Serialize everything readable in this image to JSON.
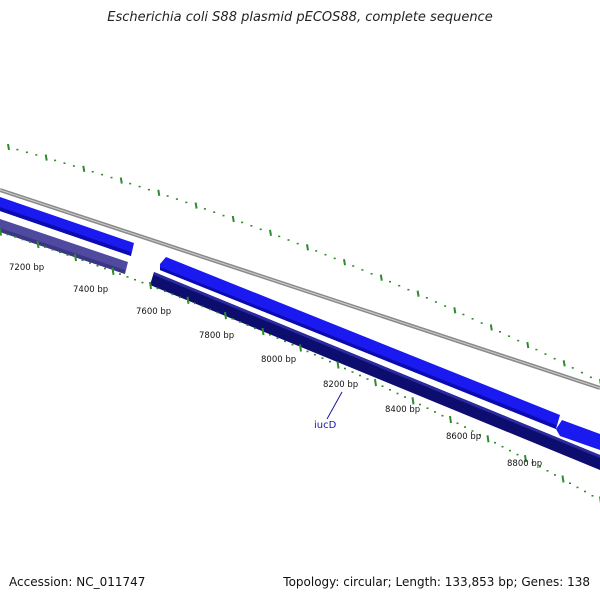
{
  "title": "Escherichia coli S88 plasmid pECOS88, complete sequence",
  "footer": {
    "accession": "Accession: NC_011747",
    "summary": "Topology: circular; Length: 133,853 bp; Genes: 138"
  },
  "scale": {
    "tick_labels": [
      "7200 bp",
      "7400 bp",
      "7600 bp",
      "7800 bp",
      "8000 bp",
      "8200 bp",
      "8400 bp",
      "8600 bp",
      "8800 bp"
    ]
  },
  "genes": {
    "labels": [
      "iucD"
    ]
  },
  "colors": {
    "backbone": "#8a8a8a",
    "forward_feature": "#1a1af0",
    "reverse_feature": "#0d0d70",
    "reverse_feature_light": "#4f4aa0",
    "tick_mark": "#2e8b2e",
    "gene_label": "#1a1aa0"
  }
}
